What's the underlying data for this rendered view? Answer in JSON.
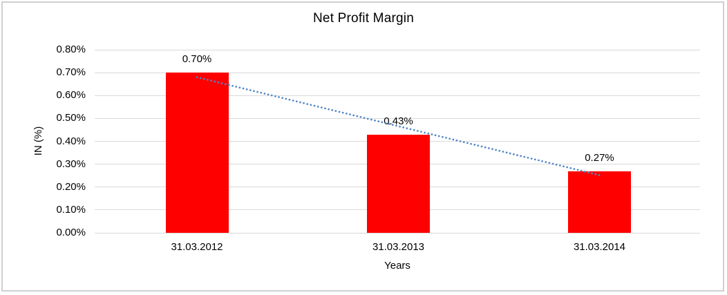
{
  "window": {
    "background_color": "#ffffff",
    "frame_border_color": "#cfcfcf"
  },
  "chart_data": {
    "type": "bar",
    "title": "Net Profit Margin",
    "xlabel": "Years",
    "ylabel": "IN (%)",
    "categories": [
      "31.03.2012",
      "31.03.2013",
      "31.03.2014"
    ],
    "values": [
      0.7,
      0.43,
      0.27
    ],
    "value_unit": "%",
    "data_labels": [
      "0.70%",
      "0.43%",
      "0.27%"
    ],
    "ylim": [
      0,
      0.8
    ],
    "ytick_step": 0.1,
    "ytick_labels": [
      "0.00%",
      "0.10%",
      "0.20%",
      "0.30%",
      "0.40%",
      "0.50%",
      "0.60%",
      "0.70%",
      "0.80%"
    ],
    "grid": true,
    "legend": "none",
    "bar_color": "#ff0000",
    "gridline_color": "#d9d9d9",
    "text_color": "#000000",
    "trendline": {
      "type": "linear",
      "style": "dotted",
      "color": "#5286c5",
      "start_value": 0.68,
      "end_value": 0.252
    }
  }
}
